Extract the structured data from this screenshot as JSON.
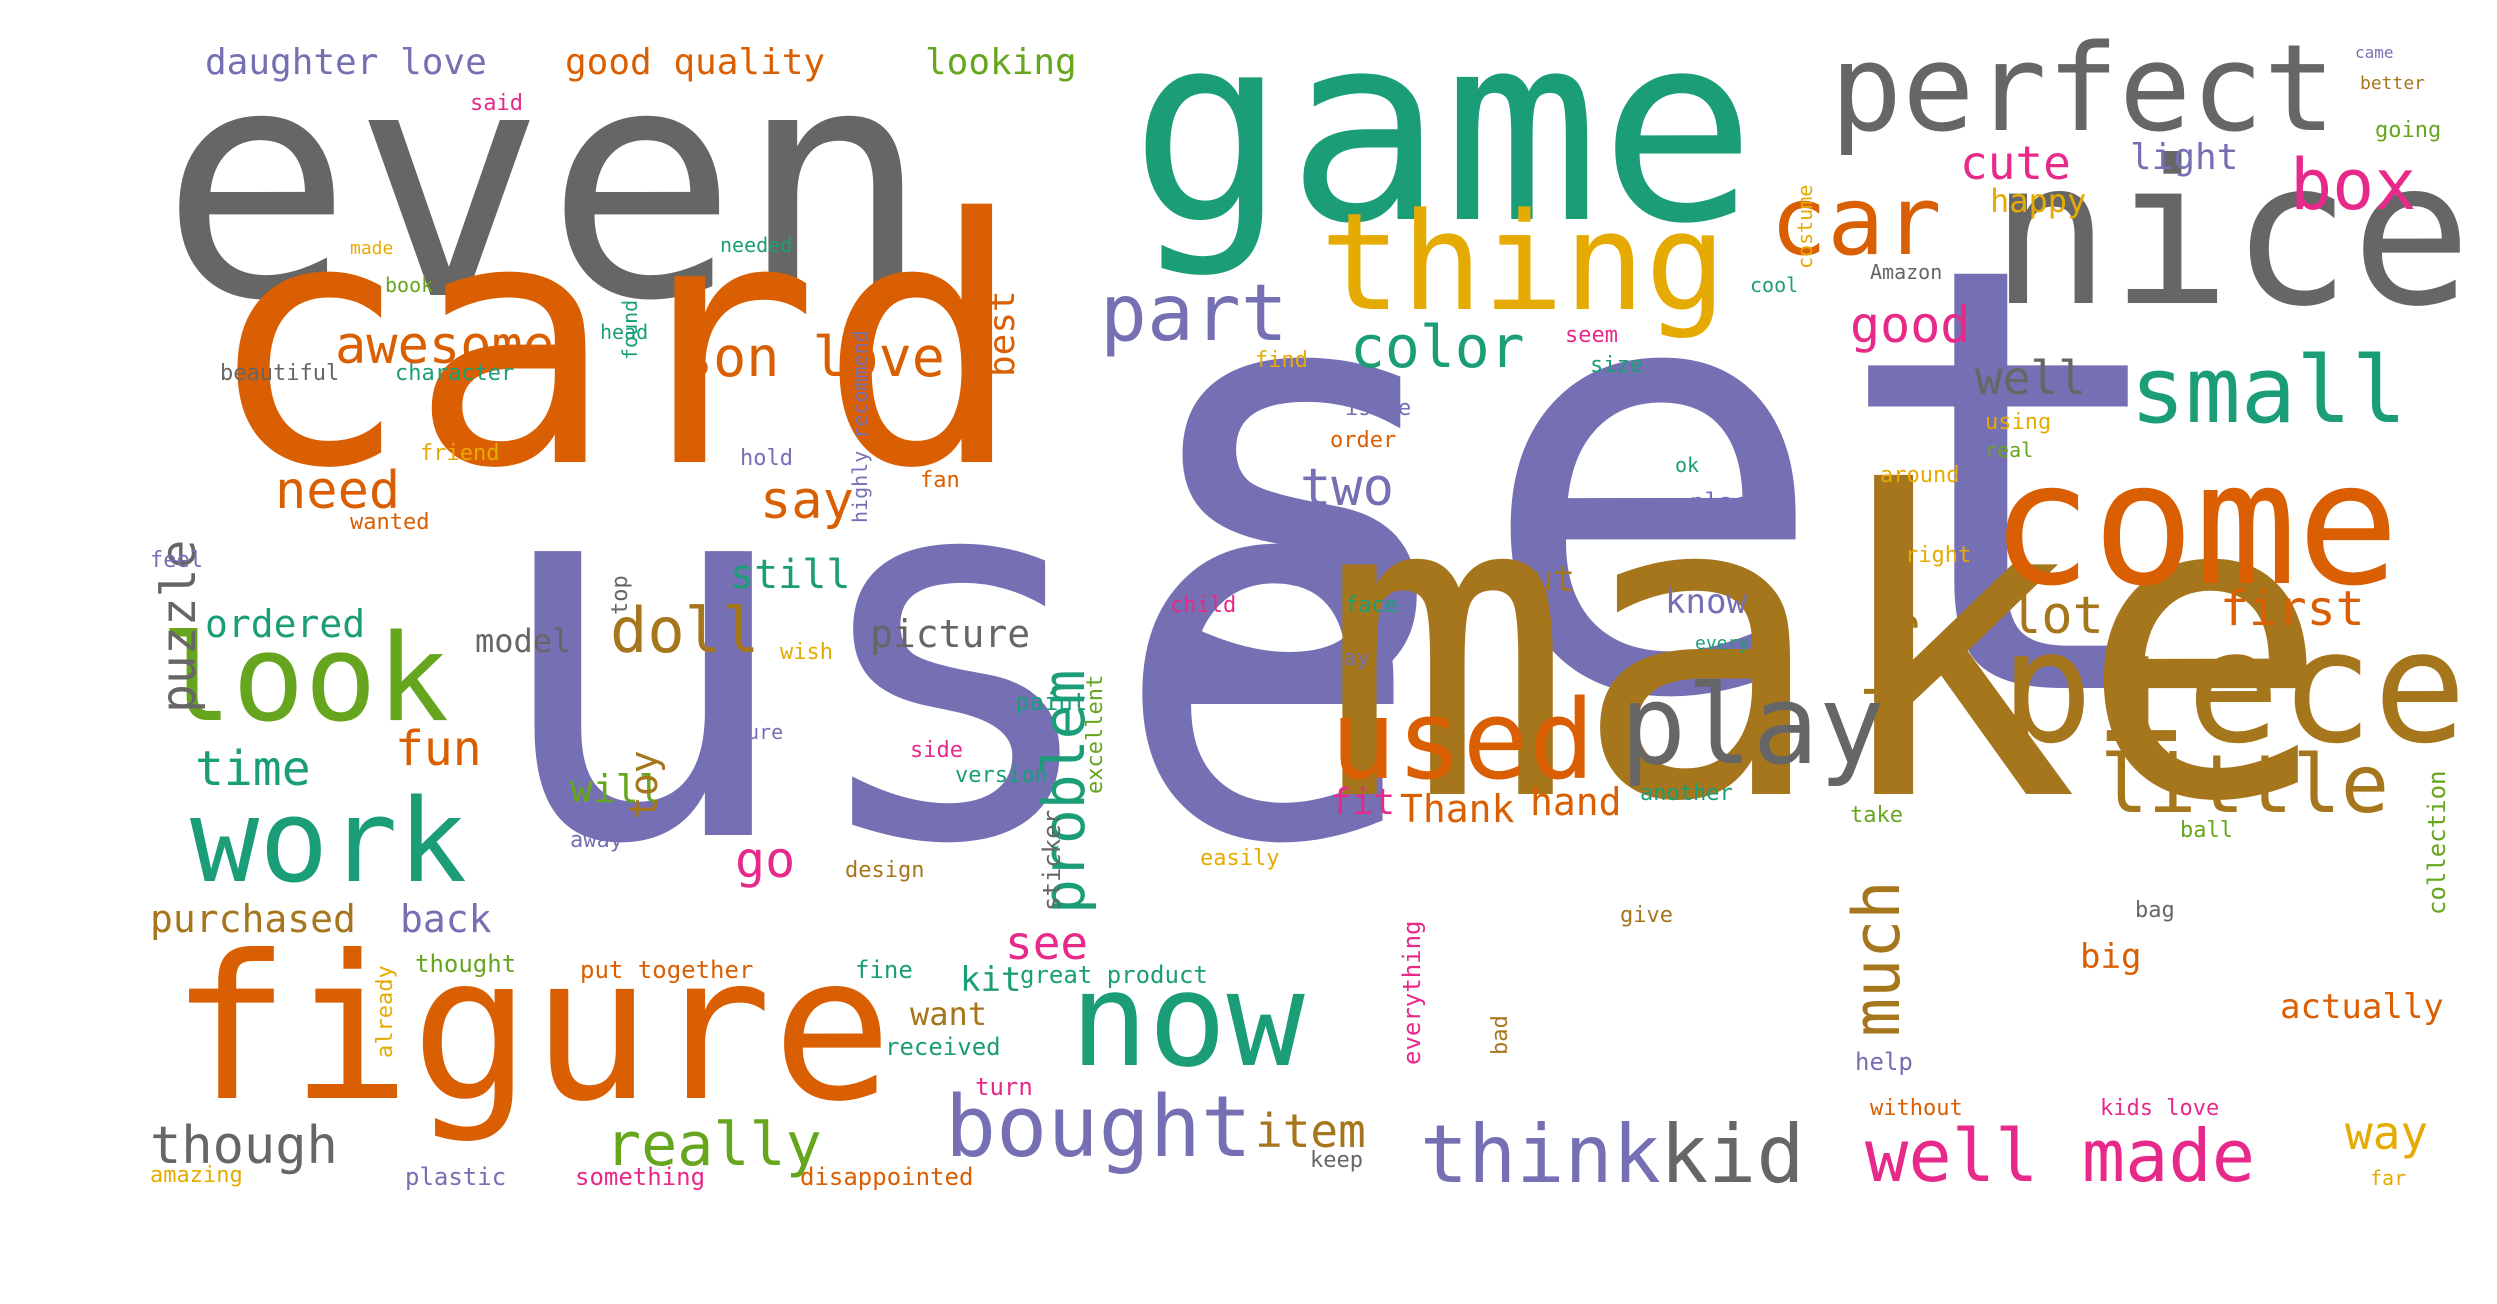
{
  "palette": {
    "gray": "#666666",
    "teal": "#1b9e77",
    "orange": "#d95f02",
    "purple": "#7570b3",
    "gold": "#a6761d",
    "magenta": "#e7298a",
    "green": "#66a61e",
    "yellow": "#e6ab02"
  },
  "words": [
    {
      "text": "set",
      "color": "#7570b3"
    },
    {
      "text": "use",
      "color": "#7570b3"
    },
    {
      "text": "make",
      "color": "#a6761d"
    },
    {
      "text": "even",
      "color": "#666666"
    },
    {
      "text": "card",
      "color": "#d95f02"
    },
    {
      "text": "game",
      "color": "#1b9e77"
    },
    {
      "text": "nice",
      "color": "#666666"
    },
    {
      "text": "come",
      "color": "#d95f02"
    },
    {
      "text": "figure",
      "color": "#d95f02"
    },
    {
      "text": "piece",
      "color": "#a6761d"
    },
    {
      "text": "perfect",
      "color": "#666666"
    },
    {
      "text": "thing",
      "color": "#e6ab02"
    },
    {
      "text": "look",
      "color": "#66a61e"
    },
    {
      "text": "now",
      "color": "#1b9e77"
    },
    {
      "text": "work",
      "color": "#1b9e77"
    },
    {
      "text": "play",
      "color": "#666666"
    },
    {
      "text": "used",
      "color": "#d95f02"
    },
    {
      "text": "car",
      "color": "#d95f02"
    },
    {
      "text": "small",
      "color": "#1b9e77"
    },
    {
      "text": "little",
      "color": "#a6761d"
    },
    {
      "text": "bought",
      "color": "#7570b3"
    },
    {
      "text": "think",
      "color": "#7570b3"
    },
    {
      "text": "kid",
      "color": "#666666"
    },
    {
      "text": "well made",
      "color": "#e7298a"
    },
    {
      "text": "part",
      "color": "#7570b3"
    },
    {
      "text": "box",
      "color": "#e7298a"
    },
    {
      "text": "color",
      "color": "#1b9e77"
    },
    {
      "text": "awesome",
      "color": "#d95f02"
    },
    {
      "text": "son love",
      "color": "#d95f02"
    },
    {
      "text": "doll",
      "color": "#a6761d"
    },
    {
      "text": "really",
      "color": "#66a61e"
    },
    {
      "text": "though",
      "color": "#666666"
    },
    {
      "text": "much",
      "color": "#a6761d"
    },
    {
      "text": "problem",
      "color": "#1b9e77"
    },
    {
      "text": "puzzle",
      "color": "#666666"
    },
    {
      "text": "buy",
      "color": "#a6761d"
    },
    {
      "text": "cute",
      "color": "#e7298a"
    },
    {
      "text": "good",
      "color": "#e7298a"
    },
    {
      "text": "well",
      "color": "#666666"
    },
    {
      "text": "lot",
      "color": "#a6761d"
    },
    {
      "text": "first",
      "color": "#d95f02"
    },
    {
      "text": "need",
      "color": "#d95f02"
    },
    {
      "text": "say",
      "color": "#d95f02"
    },
    {
      "text": "two",
      "color": "#7570b3"
    },
    {
      "text": "fun",
      "color": "#d95f02"
    },
    {
      "text": "time",
      "color": "#1b9e77"
    },
    {
      "text": "item",
      "color": "#a6761d"
    },
    {
      "text": "go",
      "color": "#e7298a"
    },
    {
      "text": "see",
      "color": "#e7298a"
    },
    {
      "text": "way",
      "color": "#e6ab02"
    },
    {
      "text": "daughter love",
      "color": "#7570b3"
    },
    {
      "text": "good quality",
      "color": "#d95f02"
    },
    {
      "text": "looking",
      "color": "#66a61e"
    },
    {
      "text": "ordered",
      "color": "#1b9e77"
    },
    {
      "text": "model",
      "color": "#666666"
    },
    {
      "text": "picture",
      "color": "#666666"
    },
    {
      "text": "purchased",
      "color": "#a6761d"
    },
    {
      "text": "back",
      "color": "#7570b3"
    },
    {
      "text": "still",
      "color": "#1b9e77"
    },
    {
      "text": "will",
      "color": "#66a61e"
    },
    {
      "text": "toy",
      "color": "#a6761d"
    },
    {
      "text": "light",
      "color": "#7570b3"
    },
    {
      "text": "happy",
      "color": "#e6ab02"
    },
    {
      "text": "know",
      "color": "#7570b3"
    },
    {
      "text": "put",
      "color": "#a6761d"
    },
    {
      "text": "hand",
      "color": "#d95f02"
    },
    {
      "text": "fit",
      "color": "#e7298a"
    },
    {
      "text": "Thank",
      "color": "#d95f02"
    },
    {
      "text": "kit",
      "color": "#1b9e77"
    },
    {
      "text": "want",
      "color": "#a6761d"
    },
    {
      "text": "big",
      "color": "#d95f02"
    },
    {
      "text": "actually",
      "color": "#d95f02"
    },
    {
      "text": "best",
      "color": "#d95f02"
    },
    {
      "text": "said",
      "color": "#e7298a"
    },
    {
      "text": "highly recommend",
      "color": "#7570b3"
    },
    {
      "text": "costume",
      "color": "#e6ab02"
    },
    {
      "text": "came",
      "color": "#7570b3"
    },
    {
      "text": "better",
      "color": "#a6761d"
    },
    {
      "text": "going",
      "color": "#66a61e"
    },
    {
      "text": "made",
      "color": "#e6ab02"
    },
    {
      "text": "book",
      "color": "#66a61e"
    },
    {
      "text": "needed",
      "color": "#1b9e77"
    },
    {
      "text": "found",
      "color": "#1b9e77"
    },
    {
      "text": "cool",
      "color": "#1b9e77"
    },
    {
      "text": "Amazon",
      "color": "#666666"
    },
    {
      "text": "head",
      "color": "#1b9e77"
    },
    {
      "text": "beautiful",
      "color": "#666666"
    },
    {
      "text": "character",
      "color": "#1b9e77"
    },
    {
      "text": "seem",
      "color": "#e7298a"
    },
    {
      "text": "size",
      "color": "#1b9e77"
    },
    {
      "text": "find",
      "color": "#e6ab02"
    },
    {
      "text": "issue",
      "color": "#7570b3"
    },
    {
      "text": "using",
      "color": "#e6ab02"
    },
    {
      "text": "real",
      "color": "#66a61e"
    },
    {
      "text": "order",
      "color": "#d95f02"
    },
    {
      "text": "friend",
      "color": "#e6ab02"
    },
    {
      "text": "wanted",
      "color": "#d95f02"
    },
    {
      "text": "feel",
      "color": "#7570b3"
    },
    {
      "text": "hold",
      "color": "#7570b3"
    },
    {
      "text": "fan",
      "color": "#d95f02"
    },
    {
      "text": "ok",
      "color": "#1b9e77"
    },
    {
      "text": "around",
      "color": "#e6ab02"
    },
    {
      "text": "place",
      "color": "#7570b3"
    },
    {
      "text": "right",
      "color": "#e6ab02"
    },
    {
      "text": "top",
      "color": "#666666"
    },
    {
      "text": "excellent",
      "color": "#66a61e"
    },
    {
      "text": "child",
      "color": "#e7298a"
    },
    {
      "text": "face",
      "color": "#1b9e77"
    },
    {
      "text": "wish",
      "color": "#e6ab02"
    },
    {
      "text": "day",
      "color": "#7570b3"
    },
    {
      "text": "every",
      "color": "#1b9e77"
    },
    {
      "text": "paint",
      "color": "#1b9e77"
    },
    {
      "text": "sure",
      "color": "#7570b3"
    },
    {
      "text": "side",
      "color": "#e7298a"
    },
    {
      "text": "version",
      "color": "#1b9e77"
    },
    {
      "text": "another",
      "color": "#1b9e77"
    },
    {
      "text": "take",
      "color": "#66a61e"
    },
    {
      "text": "ball",
      "color": "#66a61e"
    },
    {
      "text": "away",
      "color": "#7570b3"
    },
    {
      "text": "sticker",
      "color": "#666666"
    },
    {
      "text": "design",
      "color": "#a6761d"
    },
    {
      "text": "easily",
      "color": "#e6ab02"
    },
    {
      "text": "collection",
      "color": "#66a61e"
    },
    {
      "text": "give",
      "color": "#a6761d"
    },
    {
      "text": "bag",
      "color": "#666666"
    },
    {
      "text": "thought",
      "color": "#66a61e"
    },
    {
      "text": "put together",
      "color": "#d95f02"
    },
    {
      "text": "fine",
      "color": "#1b9e77"
    },
    {
      "text": "great product",
      "color": "#1b9e77"
    },
    {
      "text": "already",
      "color": "#e6ab02"
    },
    {
      "text": "received",
      "color": "#1b9e77"
    },
    {
      "text": "everything",
      "color": "#e7298a"
    },
    {
      "text": "bad",
      "color": "#a6761d"
    },
    {
      "text": "help",
      "color": "#7570b3"
    },
    {
      "text": "turn",
      "color": "#e7298a"
    },
    {
      "text": "without",
      "color": "#d95f02"
    },
    {
      "text": "kids love",
      "color": "#e7298a"
    },
    {
      "text": "amazing",
      "color": "#e6ab02"
    },
    {
      "text": "plastic",
      "color": "#7570b3"
    },
    {
      "text": "something",
      "color": "#e7298a"
    },
    {
      "text": "disappointed",
      "color": "#d95f02"
    },
    {
      "text": "keep",
      "color": "#666666"
    },
    {
      "text": "far",
      "color": "#e6ab02"
    }
  ]
}
